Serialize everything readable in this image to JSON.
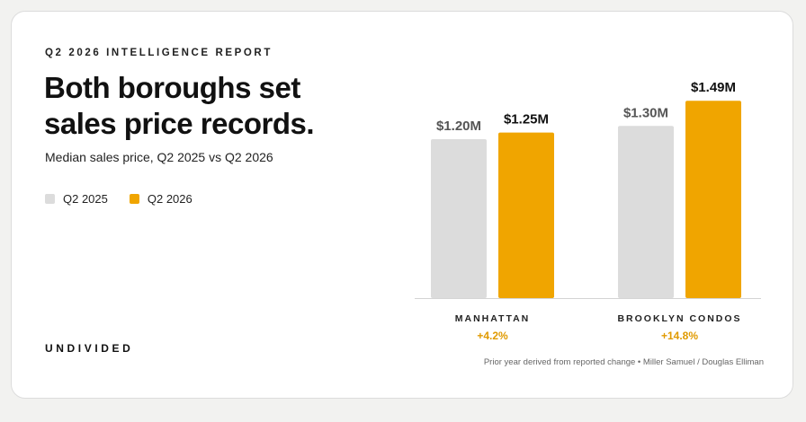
{
  "report_label": "Q2 2026 INTELLIGENCE REPORT",
  "headline": "Both boroughs set\nsales price records.",
  "subtitle": "Median sales price, Q2 2025 vs Q2 2026",
  "brand": "UNDIVIDED",
  "source_note": "Prior year derived from reported change • Miller Samuel / Douglas Elliman",
  "colors": {
    "q2_2025": "#dcdcdc",
    "q2_2026": "#f0a500",
    "change": "#e09a00"
  },
  "chart_data": {
    "type": "bar",
    "title": "Both boroughs set sales price records.",
    "subtitle": "Median sales price, Q2 2025 vs Q2 2026",
    "categories": [
      "MANHATTAN",
      "BROOKLYN CONDOS"
    ],
    "series": [
      {
        "name": "Q2 2025",
        "values": [
          1.2,
          1.3
        ],
        "labels": [
          "$1.20M",
          "$1.30M"
        ],
        "color": "#dcdcdc"
      },
      {
        "name": "Q2 2026",
        "values": [
          1.25,
          1.49
        ],
        "labels": [
          "$1.25M",
          "$1.49M"
        ],
        "color": "#f0a500"
      }
    ],
    "change_labels": [
      "+4.2%",
      "+14.8%"
    ],
    "unit": "$M",
    "ylim": [
      0,
      1.7
    ],
    "grid": false,
    "legend_position": "left"
  }
}
